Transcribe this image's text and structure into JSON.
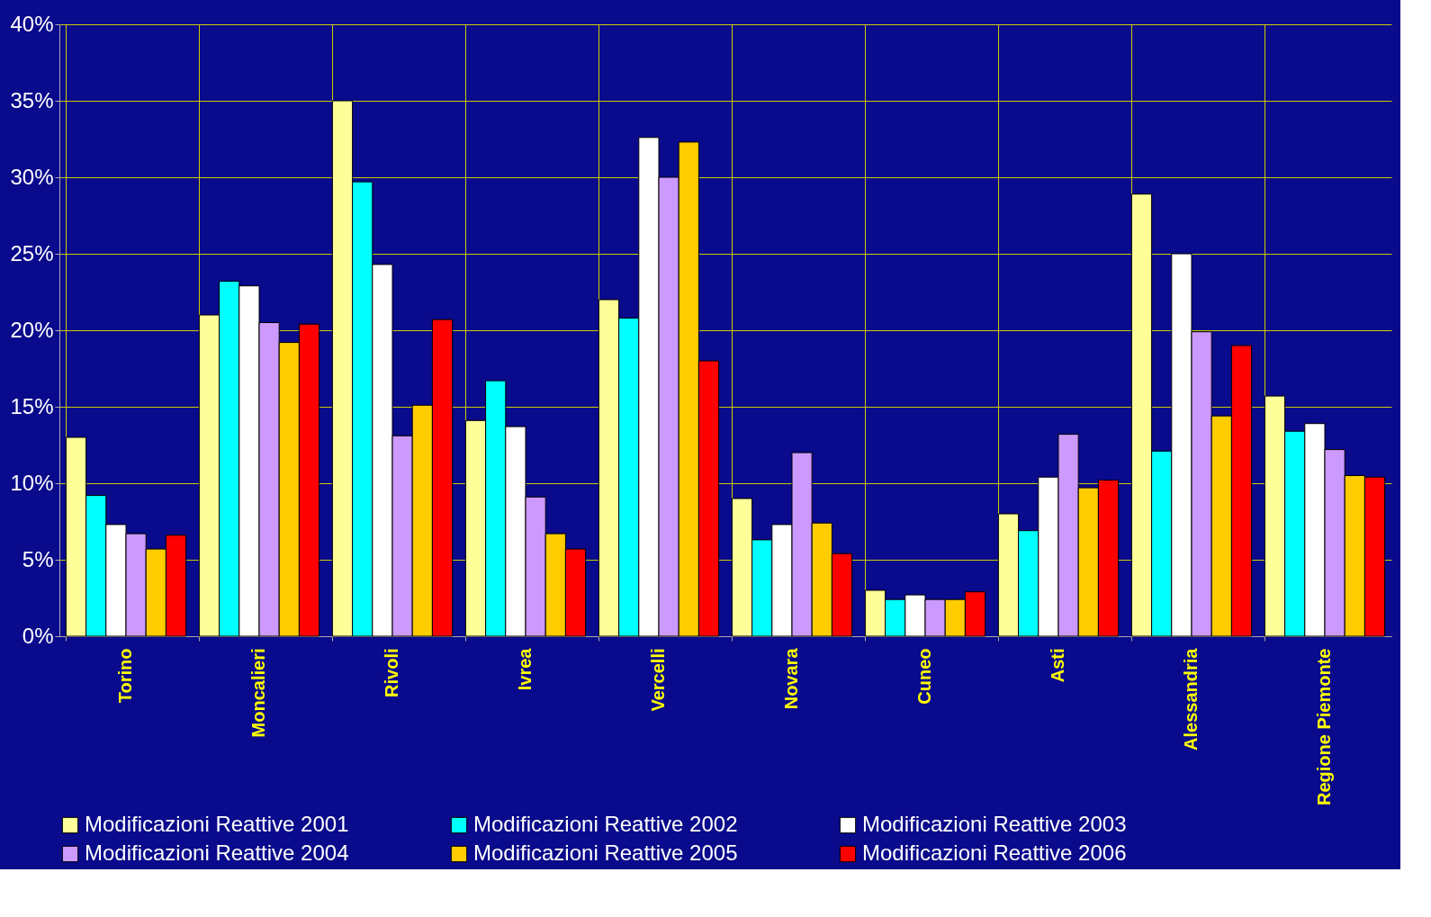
{
  "chart_data": {
    "type": "bar",
    "categories": [
      "Torino",
      "Moncalieri",
      "Rivoli",
      "Ivrea",
      "Vercelli",
      "Novara",
      "Cuneo",
      "Asti",
      "Alessandria",
      "Regione Piemonte"
    ],
    "series": [
      {
        "name": "Modificazioni Reattive 2001",
        "color": "#ffff99",
        "values": [
          13,
          21,
          35,
          14.1,
          22,
          9,
          3,
          8,
          28.9,
          15.7
        ]
      },
      {
        "name": "Modificazioni Reattive 2002",
        "color": "#00ffff",
        "values": [
          9.2,
          23.2,
          29.7,
          16.7,
          20.8,
          6.3,
          2.4,
          6.9,
          12.1,
          13.4
        ]
      },
      {
        "name": "Modificazioni Reattive 2003",
        "color": "#ffffff",
        "values": [
          7.3,
          22.9,
          24.3,
          13.7,
          32.6,
          7.3,
          2.7,
          10.4,
          25,
          13.9
        ]
      },
      {
        "name": "Modificazioni Reattive 2004",
        "color": "#cc99ff",
        "values": [
          6.7,
          20.5,
          13.1,
          9.1,
          30,
          12,
          2.4,
          13.2,
          19.9,
          12.2
        ]
      },
      {
        "name": "Modificazioni Reattive 2005",
        "color": "#ffcc00",
        "values": [
          5.7,
          19.2,
          15.1,
          6.7,
          32.3,
          7.4,
          2.4,
          9.7,
          14.4,
          10.5
        ]
      },
      {
        "name": "Modificazioni Reattive 2006",
        "color": "#ff0000",
        "values": [
          6.6,
          20.4,
          20.7,
          5.7,
          18,
          5.4,
          2.9,
          10.2,
          19,
          10.4
        ]
      }
    ],
    "ylim": [
      0,
      40
    ],
    "yticks": [
      {
        "value": 0,
        "label": "0%"
      },
      {
        "value": 5,
        "label": "5%"
      },
      {
        "value": 10,
        "label": "10%"
      },
      {
        "value": 15,
        "label": "15%"
      },
      {
        "value": 20,
        "label": "20%"
      },
      {
        "value": 25,
        "label": "25%"
      },
      {
        "value": 30,
        "label": "30%"
      },
      {
        "value": 35,
        "label": "35%"
      },
      {
        "value": 40,
        "label": "40%"
      }
    ],
    "grid": true,
    "legend": "bottom"
  }
}
